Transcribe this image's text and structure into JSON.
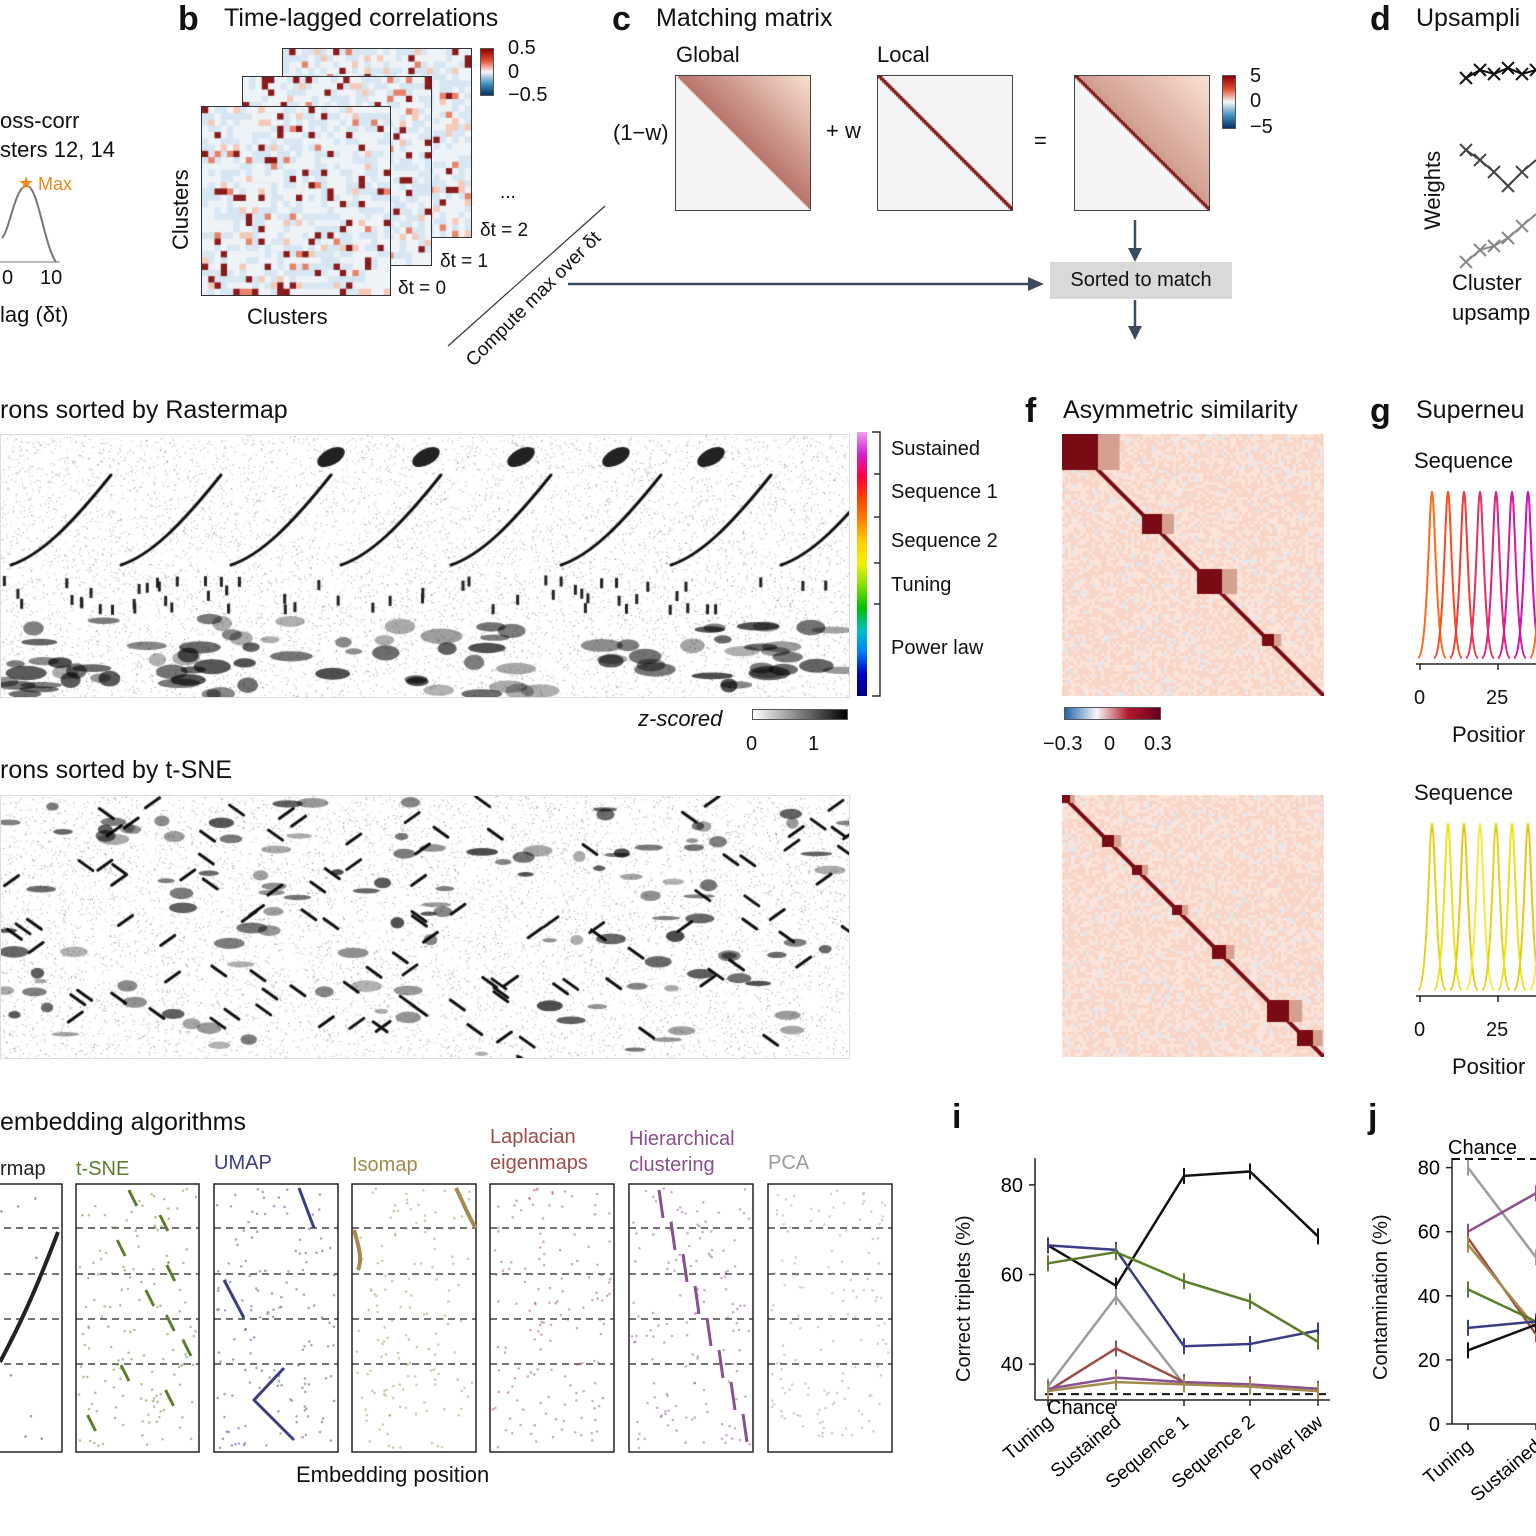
{
  "panel_letters": {
    "b": "b",
    "c": "c",
    "d": "d",
    "f": "f",
    "g": "g",
    "i": "i",
    "j": "j"
  },
  "panel_a": {
    "title_line1": "oss-corr",
    "title_line2": "sters 12, 14",
    "max_label": "Max",
    "ticks": [
      "0",
      "10"
    ],
    "xlabel": "lag (δt)",
    "color_max": "#e88b1a"
  },
  "panel_b": {
    "title": "Time-lagged correlations",
    "ylabel": "Clusters",
    "xlabel": "Clusters",
    "cbar_ticks": [
      "0.5",
      "0",
      "−0.5"
    ],
    "lags": [
      "δt = 2",
      "δt = 1",
      "δt = 0"
    ],
    "ellipsis": "...",
    "arrow_text": "Compute max over δt"
  },
  "panel_c": {
    "title": "Matching matrix",
    "global_label": "Global",
    "local_label": "Local",
    "factor_1": "(1−w)",
    "plus_w": "+ w",
    "equals": "=",
    "cbar_ticks": [
      "5",
      "0",
      "−5"
    ],
    "sorted_box": "Sorted to match"
  },
  "panel_d": {
    "title": "Upsampli",
    "ylabel": "Weights",
    "footer_line1": "Cluster",
    "footer_line2": "upsamp"
  },
  "panel_e": {
    "title_top": "rons sorted by Rastermap",
    "title_bottom": "rons sorted by t-SNE",
    "legend": [
      "Sustained",
      "Sequence 1",
      "Sequence 2",
      "Tuning",
      "Power law"
    ],
    "zscore_label": "z-scored",
    "zscore_ticks": [
      "0",
      "1"
    ]
  },
  "panel_f": {
    "title": "Asymmetric similarity",
    "cbar_ticks": [
      "−0.3",
      "0",
      "0.3"
    ]
  },
  "panel_g": {
    "title": "Superneu",
    "sub1": "Sequence",
    "sub2": "Sequence",
    "ticks": [
      "0",
      "25"
    ],
    "xlabel": "Positior"
  },
  "panel_h": {
    "title": "embedding algorithms",
    "methods": [
      {
        "label": "rmap",
        "color": "#222222"
      },
      {
        "label": "t-SNE",
        "color": "#5c7d2a"
      },
      {
        "label": "UMAP",
        "color": "#3b3e86"
      },
      {
        "label": "Isomap",
        "color": "#a48a4c"
      },
      {
        "label": "Laplacian\neigenmaps",
        "color": "#9e4c47"
      },
      {
        "label": "Hierarchical\nclustering",
        "color": "#8b4f8f"
      },
      {
        "label": "PCA",
        "color": "#9b9b9b"
      }
    ],
    "xlabel": "Embedding position"
  },
  "chart_data": [
    {
      "type": "line",
      "panel": "i",
      "ylabel": "Correct triplets (%)",
      "categories": [
        "Tuning",
        "Sustained",
        "Sequence 1",
        "Sequence 2",
        "Power law"
      ],
      "yticks": [
        "40",
        "60",
        "80"
      ],
      "ylim": [
        32,
        86
      ],
      "chance_label": "Chance",
      "chance_value": 33.3,
      "series": [
        {
          "color": "#111111",
          "values": [
            66.5,
            57.5,
            82,
            83,
            68.5
          ]
        },
        {
          "color": "#3b3e86",
          "values": [
            66.5,
            65.5,
            44,
            44.5,
            47.5
          ]
        },
        {
          "color": "#5c7d2a",
          "values": [
            62.5,
            65,
            58.5,
            54,
            45
          ]
        },
        {
          "color": "#9b9b9b",
          "values": [
            35,
            55,
            35.5,
            35,
            34.5
          ]
        },
        {
          "color": "#9e4c47",
          "values": [
            34,
            43.5,
            36,
            35,
            34
          ]
        },
        {
          "color": "#8b4f8f",
          "values": [
            34.5,
            37,
            36,
            35.5,
            34.5
          ]
        },
        {
          "color": "#a48a4c",
          "values": [
            34,
            36,
            35.5,
            35,
            34
          ]
        }
      ]
    },
    {
      "type": "line",
      "panel": "j",
      "ylabel": "Contamination (%)",
      "categories": [
        "Tuning",
        "Sustained"
      ],
      "yticks": [
        "0",
        "20",
        "40",
        "60",
        "80"
      ],
      "ylim": [
        0,
        83
      ],
      "chance_label": "Chance",
      "series": [
        {
          "color": "#9b9b9b",
          "values": [
            80,
            52
          ]
        },
        {
          "color": "#8b4f8f",
          "values": [
            60,
            72
          ]
        },
        {
          "color": "#9e4c47",
          "values": [
            58,
            28
          ]
        },
        {
          "color": "#a48a4c",
          "values": [
            56,
            30
          ]
        },
        {
          "color": "#5c7d2a",
          "values": [
            42,
            32
          ]
        },
        {
          "color": "#3b3e86",
          "values": [
            30,
            32
          ]
        },
        {
          "color": "#111111",
          "values": [
            23,
            31
          ]
        }
      ]
    }
  ]
}
